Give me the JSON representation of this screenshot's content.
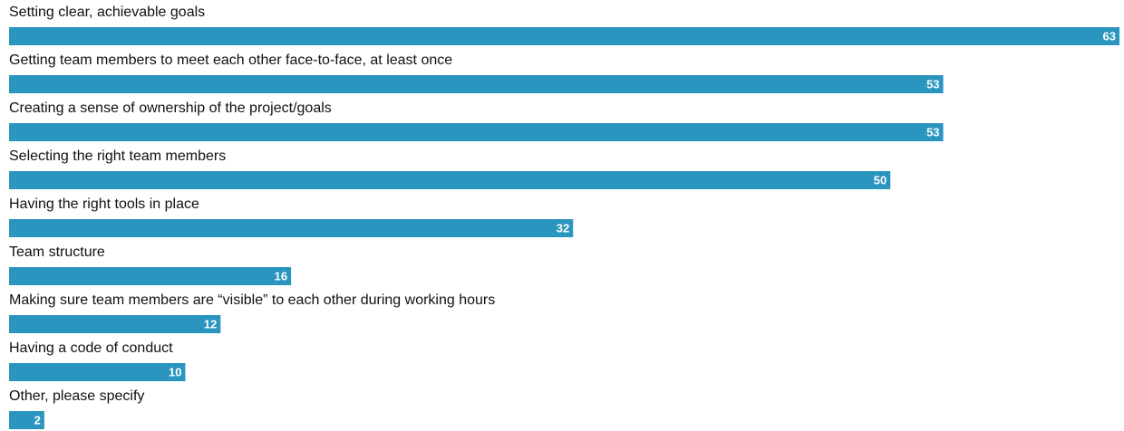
{
  "chart_data": {
    "type": "barh",
    "categories": [
      "Setting clear, achievable goals",
      "Getting team members to meet each other face-to-face, at least once",
      "Creating a sense of ownership of the project/goals",
      "Selecting the right team members",
      "Having the right tools in place",
      "Team structure",
      "Making sure team members are “visible” to each other during working hours",
      "Having a code of conduct",
      "Other, please specify"
    ],
    "values": [
      63,
      53,
      53,
      50,
      32,
      16,
      12,
      10,
      2
    ],
    "color": "#2a95bf"
  }
}
